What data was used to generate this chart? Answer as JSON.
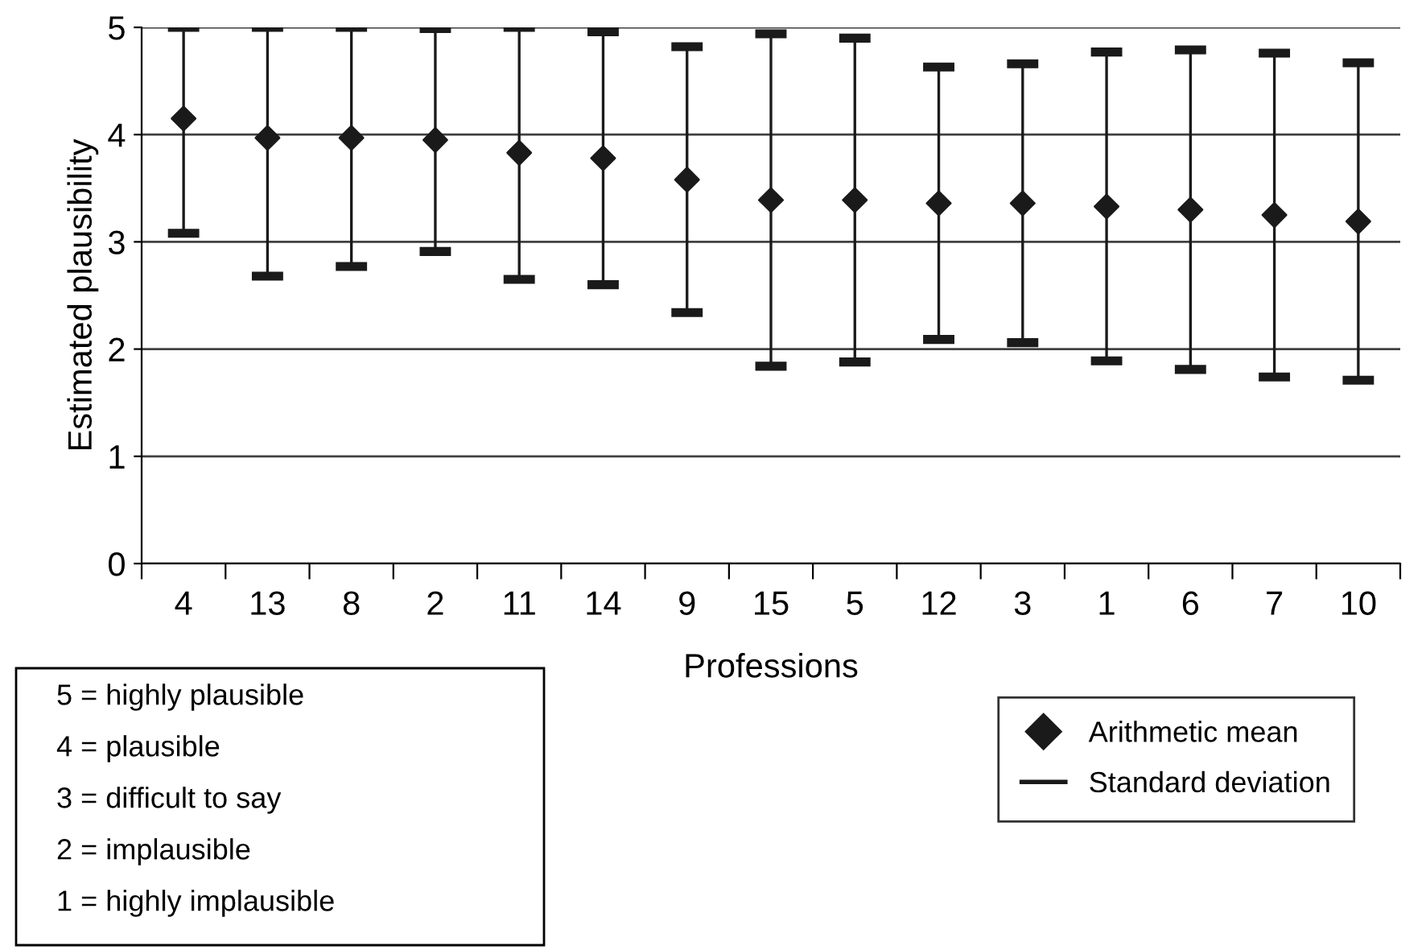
{
  "chart_data": {
    "type": "scatter",
    "xlabel": "Professions",
    "ylabel": "Estimated plausibility",
    "categories": [
      "4",
      "13",
      "8",
      "2",
      "11",
      "14",
      "9",
      "15",
      "5",
      "12",
      "3",
      "1",
      "6",
      "7",
      "10"
    ],
    "series": [
      {
        "name": "Arithmetic mean",
        "color": "#1a1a1a",
        "values": [
          4.15,
          3.97,
          3.97,
          3.95,
          3.83,
          3.78,
          3.58,
          3.39,
          3.39,
          3.36,
          3.36,
          3.33,
          3.3,
          3.25,
          3.19
        ],
        "errors": [
          [
            3.08,
            5
          ],
          [
            2.68,
            5
          ],
          [
            2.77,
            5
          ],
          1.04,
          [
            2.65,
            5
          ],
          1.18,
          1.24,
          1.55,
          1.51,
          1.27,
          1.3,
          1.44,
          1.49,
          1.51,
          1.48
        ]
      }
    ],
    "ylim": [
      0,
      5
    ],
    "yticks": [
      0,
      1,
      2,
      3,
      4,
      5
    ],
    "grid": "y",
    "marker": "diamond",
    "legend": "bottom right",
    "annotations": [
      "Standard deviation",
      "5 = highly plausible",
      "4 = plausible",
      "3 = difficult to say",
      "2 = implausible",
      "1 = highly implausible"
    ]
  }
}
